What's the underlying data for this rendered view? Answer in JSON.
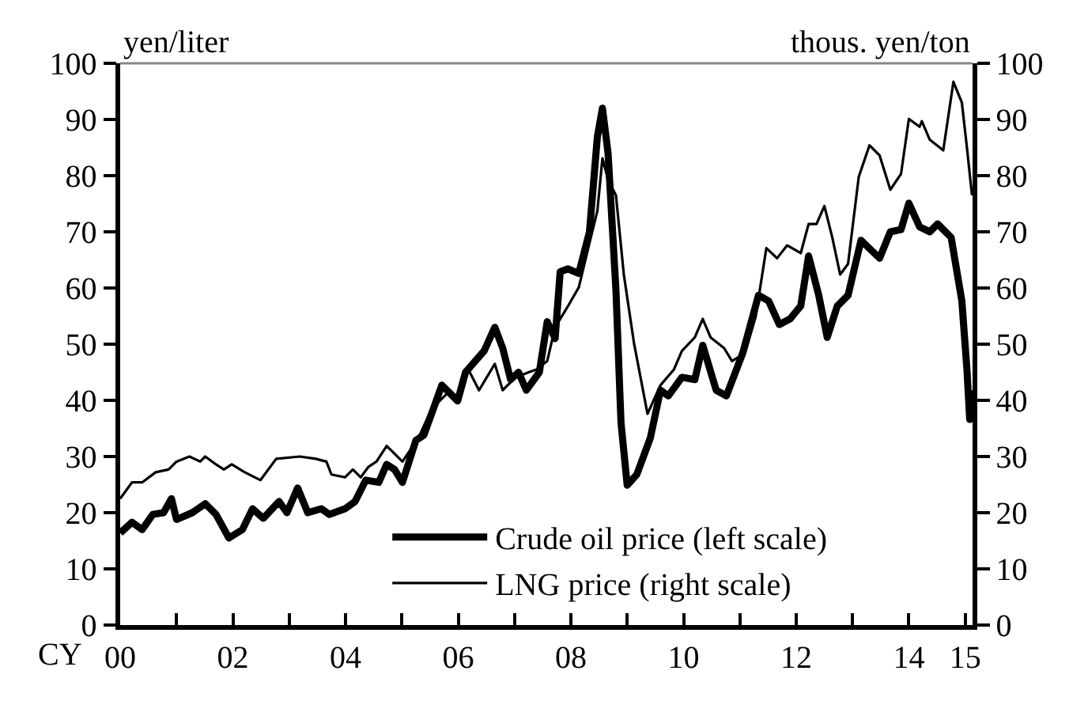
{
  "chart_data": {
    "type": "line",
    "xlabel": "CY",
    "ylabel": "yen/liter",
    "y2label": "thous. yen/ton",
    "xlim": [
      2000,
      2015.13
    ],
    "xticks": [
      {
        "value": 2000,
        "label": "00"
      },
      {
        "value": 2001,
        "label": null
      },
      {
        "value": 2002,
        "label": "02"
      },
      {
        "value": 2003,
        "label": null
      },
      {
        "value": 2004,
        "label": "04"
      },
      {
        "value": 2005,
        "label": null
      },
      {
        "value": 2006,
        "label": "06"
      },
      {
        "value": 2007,
        "label": null
      },
      {
        "value": 2008,
        "label": "08"
      },
      {
        "value": 2009,
        "label": null
      },
      {
        "value": 2010,
        "label": "10"
      },
      {
        "value": 2011,
        "label": null
      },
      {
        "value": 2012,
        "label": "12"
      },
      {
        "value": 2013,
        "label": null
      },
      {
        "value": 2014,
        "label": "14"
      },
      {
        "value": 2015,
        "label": "15"
      }
    ],
    "ylim": [
      0,
      100
    ],
    "yticks": [
      0,
      10,
      20,
      30,
      40,
      50,
      60,
      70,
      80,
      90,
      100
    ],
    "y2lim": [
      0,
      100
    ],
    "y2ticks": [
      0,
      10,
      20,
      30,
      40,
      50,
      60,
      70,
      80,
      90,
      100
    ],
    "grid": false,
    "legend": "bottom",
    "marker": "none",
    "line_style": "solid",
    "series": [
      {
        "name": "Crude oil price (left scale)",
        "color": "#000000",
        "x": [
          2000.0,
          2000.21,
          2000.39,
          2000.58,
          2000.77,
          2000.91,
          2001.0,
          2001.28,
          2001.51,
          2001.7,
          2001.93,
          2002.17,
          2002.35,
          2002.54,
          2002.82,
          2002.96,
          2003.15,
          2003.33,
          2003.57,
          2003.71,
          2003.99,
          2004.17,
          2004.36,
          2004.59,
          2004.73,
          2004.87,
          2005.01,
          2005.25,
          2005.39,
          2005.71,
          2005.85,
          2005.99,
          2006.13,
          2006.46,
          2006.65,
          2006.79,
          2006.93,
          2007.07,
          2007.21,
          2007.44,
          2007.58,
          2007.72,
          2007.81,
          2007.95,
          2008.14,
          2008.33,
          2008.47,
          2008.56,
          2008.66,
          2008.8,
          2008.89,
          2009.0,
          2009.17,
          2009.41,
          2009.59,
          2009.73,
          2009.97,
          2010.2,
          2010.34,
          2010.58,
          2010.76,
          2011.05,
          2011.33,
          2011.51,
          2011.7,
          2011.89,
          2012.08,
          2012.22,
          2012.4,
          2012.55,
          2012.73,
          2012.92,
          2013.15,
          2013.48,
          2013.67,
          2013.86,
          2014.0,
          2014.19,
          2014.37,
          2014.51,
          2014.75,
          2014.94,
          2015.03,
          2015.08,
          2015.12
        ],
        "values": [
          16.4,
          18.3,
          17,
          19.7,
          20,
          22.5,
          18.8,
          20,
          21.6,
          19.7,
          15.5,
          17,
          20.7,
          19,
          22,
          20,
          24.4,
          20,
          20.7,
          19.7,
          20.7,
          22,
          25.8,
          25.4,
          28.6,
          27.7,
          25.4,
          32.9,
          33.8,
          42.7,
          41.3,
          39.9,
          45,
          48.8,
          53,
          49.3,
          43.7,
          45,
          41.8,
          45,
          54,
          51,
          62.9,
          63.4,
          62.6,
          70,
          86.9,
          92,
          84,
          59.6,
          36,
          24.9,
          26.8,
          33.3,
          41.8,
          40.8,
          44.1,
          43.7,
          49.8,
          41.8,
          40.8,
          48.4,
          58.7,
          57.7,
          53.5,
          54.5,
          56.8,
          65.7,
          58.7,
          51.2,
          56.8,
          58.7,
          68.5,
          65.3,
          70,
          70.4,
          75.1,
          70.9,
          70,
          71.4,
          69,
          57.7,
          45.5,
          36.6,
          41.8
        ]
      },
      {
        "name": "LNG price (right scale)",
        "color": "#000000",
        "axis": "y2",
        "x": [
          2000.0,
          2000.21,
          2000.39,
          2000.63,
          2000.86,
          2001.0,
          2001.23,
          2001.42,
          2001.51,
          2001.7,
          2001.84,
          2001.98,
          2002.21,
          2002.49,
          2002.77,
          2003.19,
          2003.47,
          2003.66,
          2003.75,
          2003.99,
          2004.13,
          2004.27,
          2004.41,
          2004.55,
          2004.73,
          2004.87,
          2005.01,
          2005.2,
          2005.34,
          2005.53,
          2005.81,
          2005.99,
          2006.18,
          2006.37,
          2006.65,
          2006.79,
          2007.02,
          2007.25,
          2007.39,
          2007.58,
          2007.72,
          2007.95,
          2008.14,
          2008.33,
          2008.47,
          2008.56,
          2008.66,
          2008.8,
          2008.94,
          2009.12,
          2009.36,
          2009.59,
          2009.83,
          2009.97,
          2010.2,
          2010.34,
          2010.48,
          2010.72,
          2010.86,
          2011.09,
          2011.28,
          2011.47,
          2011.66,
          2011.84,
          2012.08,
          2012.22,
          2012.36,
          2012.5,
          2012.64,
          2012.78,
          2012.92,
          2013.11,
          2013.3,
          2013.48,
          2013.67,
          2013.86,
          2014.0,
          2014.19,
          2014.23,
          2014.37,
          2014.61,
          2014.79,
          2014.94,
          2015.03,
          2015.12
        ],
        "values": [
          22.5,
          25.4,
          25.4,
          27.2,
          27.7,
          29.1,
          30,
          29.1,
          30,
          28.6,
          27.7,
          28.6,
          27.2,
          25.8,
          29.6,
          30,
          29.6,
          29.1,
          26.8,
          26.3,
          27.7,
          26.3,
          28.2,
          29.1,
          31.9,
          30.5,
          29.1,
          31.9,
          34.3,
          38.5,
          41.3,
          40.4,
          45.5,
          41.8,
          46.5,
          41.8,
          44.1,
          45,
          45.5,
          47,
          53,
          56.8,
          60.1,
          68,
          73.7,
          83.1,
          79.3,
          76.5,
          62.4,
          50.2,
          37.6,
          42.7,
          45.5,
          48.8,
          51.2,
          54.5,
          51.2,
          49.3,
          47,
          48.4,
          54.9,
          67.1,
          65.3,
          67.6,
          66.2,
          71.4,
          71.4,
          74.6,
          69,
          62.4,
          64.3,
          79.8,
          85.4,
          83.6,
          77.5,
          80.3,
          90.1,
          88.7,
          89.7,
          86.4,
          84.5,
          96.7,
          93,
          85,
          76.5
        ]
      }
    ]
  }
}
